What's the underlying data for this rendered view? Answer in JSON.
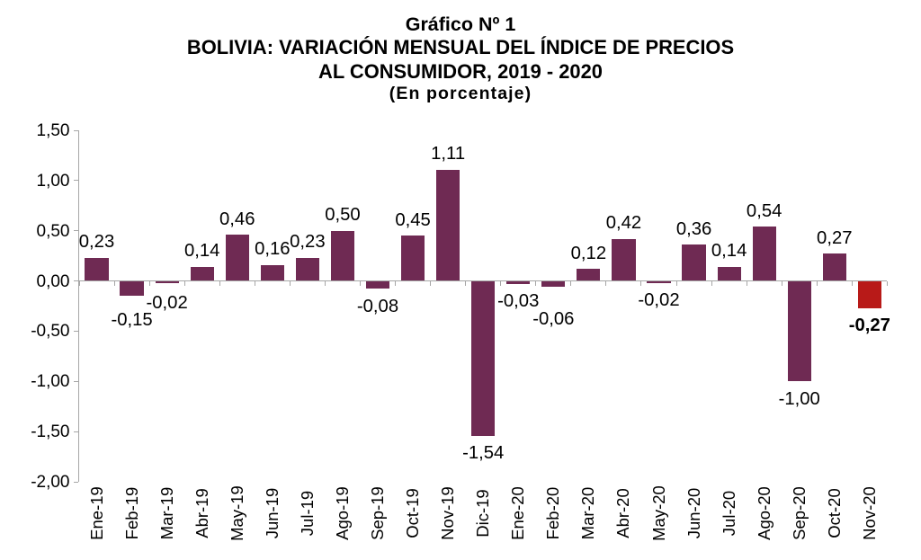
{
  "page": {
    "background": "#ffffff"
  },
  "chart_data": {
    "type": "bar",
    "title_lines": [
      "Gráfico Nº 1",
      "BOLIVIA: VARIACIÓN MENSUAL DEL ÍNDICE DE PRECIOS",
      "AL CONSUMIDOR, 2019 - 2020",
      "(En porcentaje)"
    ],
    "categories": [
      "Ene-19",
      "Feb-19",
      "Mar-19",
      "Abr-19",
      "May-19",
      "Jun-19",
      "Jul-19",
      "Ago-19",
      "Sep-19",
      "Oct-19",
      "Nov-19",
      "Dic-19",
      "Ene-20",
      "Feb-20",
      "Mar-20",
      "Abr-20",
      "May-20",
      "Jun-20",
      "Jul-20",
      "Ago-20",
      "Sep-20",
      "Oct-20",
      "Nov-20"
    ],
    "values": [
      0.23,
      -0.15,
      -0.02,
      0.14,
      0.46,
      0.16,
      0.23,
      0.5,
      -0.08,
      0.45,
      1.11,
      -1.54,
      -0.03,
      -0.06,
      0.12,
      0.42,
      -0.02,
      0.36,
      0.14,
      0.54,
      -1.0,
      0.27,
      -0.27
    ],
    "labels": [
      "0,23",
      "-0,15",
      "-0,02",
      "0,14",
      "0,46",
      "0,16",
      "0,23",
      "0,50",
      "-0,08",
      "0,45",
      "1,11",
      "-1,54",
      "-0,03",
      "-0,06",
      "0,12",
      "0,42",
      "-0,02",
      "0,36",
      "0,14",
      "0,54",
      "-1,00",
      "0,27",
      "-0,27"
    ],
    "highlight_index": 22,
    "ylim": [
      -2.0,
      1.5
    ],
    "ytick_step": 0.5,
    "ytick_labels": [
      "1,50",
      "1,00",
      "0,50",
      "0,00",
      "-0,50",
      "-1,00",
      "-1,50",
      "-2,00"
    ],
    "grid": false,
    "legend": false,
    "xlabel": "",
    "ylabel": "",
    "colors": {
      "bar": "#6F2A53",
      "highlight": "#B81A18",
      "axis": "#A6A6A6",
      "text": "#000000"
    },
    "label_extra_offsets": {
      "1": 7.5,
      "2": 2.5,
      "13": 16
    }
  }
}
